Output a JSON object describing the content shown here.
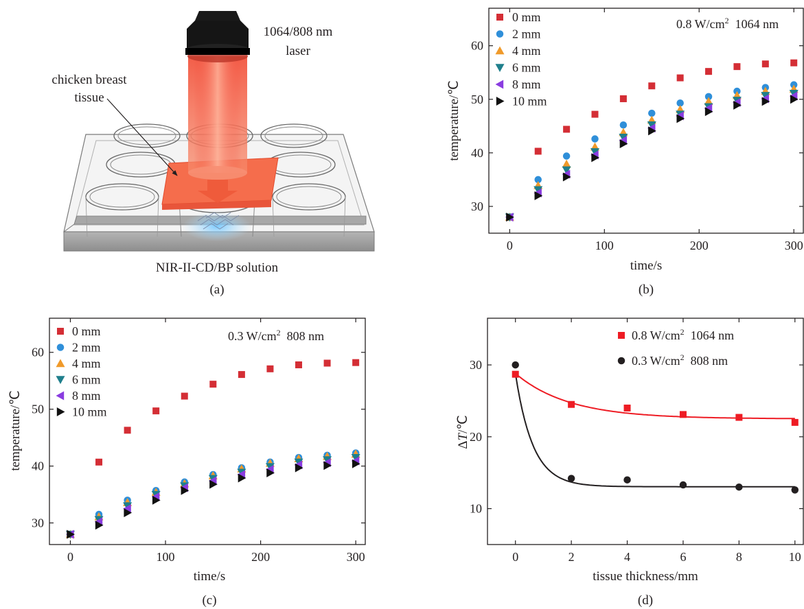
{
  "panel_a": {
    "laser_label_1": "1064/808 nm",
    "laser_label_2": "laser",
    "tissue_label_1": "chicken breast",
    "tissue_label_2": "tissue",
    "solution_label": "NIR-II-CD/BP solution",
    "caption": "(a)"
  },
  "chart_data": [
    {
      "id": "b",
      "type": "scatter",
      "caption": "(b)",
      "xlabel": "time/s",
      "ylabel": "temperature/℃",
      "annotation": {
        "power": "0.8 W/cm",
        "sup": "2",
        "wavelength": "1064 nm"
      },
      "xlim": [
        -22,
        310
      ],
      "ylim": [
        25,
        67
      ],
      "xticks": [
        0,
        100,
        200,
        300
      ],
      "yticks": [
        30,
        40,
        50,
        60
      ],
      "legend_position": "top-left",
      "grid": false,
      "x": [
        0,
        30,
        60,
        90,
        120,
        150,
        180,
        210,
        240,
        270,
        300
      ],
      "series": [
        {
          "name": "0 mm",
          "marker": "square",
          "color": "#d42e35",
          "values": [
            28,
            40.3,
            44.4,
            47.2,
            50.1,
            52.5,
            54,
            55.2,
            56.1,
            56.6,
            56.8
          ]
        },
        {
          "name": "2 mm",
          "marker": "circle",
          "color": "#2f8fd9",
          "values": [
            28,
            35,
            39.4,
            42.6,
            45.2,
            47.4,
            49.3,
            50.5,
            51.5,
            52.2,
            52.7
          ]
        },
        {
          "name": "4 mm",
          "marker": "triangle-up",
          "color": "#f09a2a",
          "values": [
            28,
            33.9,
            37.9,
            41.1,
            43.8,
            46.1,
            48.1,
            49.6,
            50.7,
            51.5,
            51.9
          ]
        },
        {
          "name": "6 mm",
          "marker": "triangle-down",
          "color": "#1f7f8c",
          "values": [
            28,
            33.1,
            36.8,
            40.2,
            42.9,
            45.2,
            47.2,
            48.6,
            49.8,
            50.7,
            51.1
          ]
        },
        {
          "name": "8 mm",
          "marker": "triangle-left",
          "color": "#8a3ce0",
          "values": [
            28,
            32.5,
            36,
            39.6,
            42.3,
            44.6,
            46.9,
            48.3,
            49.4,
            50.1,
            50.6
          ]
        },
        {
          "name": "10 mm",
          "marker": "triangle-right",
          "color": "#111111",
          "values": [
            28,
            32,
            35.5,
            39.1,
            41.7,
            44.1,
            46.4,
            47.7,
            48.9,
            49.6,
            50
          ]
        }
      ]
    },
    {
      "id": "c",
      "type": "scatter",
      "caption": "(c)",
      "xlabel": "time/s",
      "ylabel": "temperature/℃",
      "annotation": {
        "power": "0.3 W/cm",
        "sup": "2",
        "wavelength": "808 nm"
      },
      "xlim": [
        -22,
        310
      ],
      "ylim": [
        26.2,
        66
      ],
      "xticks": [
        0,
        100,
        200,
        300
      ],
      "yticks": [
        30,
        40,
        50,
        60
      ],
      "legend_position": "top-left",
      "grid": false,
      "x": [
        0,
        30,
        60,
        90,
        120,
        150,
        180,
        210,
        240,
        270,
        300
      ],
      "series": [
        {
          "name": "0 mm",
          "marker": "square",
          "color": "#d42e35",
          "values": [
            28,
            40.7,
            46.3,
            49.7,
            52.3,
            54.4,
            56.1,
            57.1,
            57.8,
            58.1,
            58.2
          ]
        },
        {
          "name": "2 mm",
          "marker": "circle",
          "color": "#2f8fd9",
          "values": [
            28,
            31.5,
            34,
            35.7,
            37.2,
            38.5,
            39.7,
            40.7,
            41.5,
            41.9,
            42.3
          ]
        },
        {
          "name": "4 mm",
          "marker": "triangle-up",
          "color": "#f09a2a",
          "values": [
            28,
            31.1,
            33.6,
            35.4,
            36.9,
            38.3,
            39.5,
            40.5,
            41.3,
            41.7,
            42.1
          ]
        },
        {
          "name": "6 mm",
          "marker": "triangle-down",
          "color": "#1f7f8c",
          "values": [
            28,
            30.6,
            33,
            35,
            36.5,
            37.8,
            38.9,
            39.9,
            40.7,
            41.1,
            41.5
          ]
        },
        {
          "name": "8 mm",
          "marker": "triangle-left",
          "color": "#8a3ce0",
          "values": [
            28,
            30.2,
            32.5,
            34.6,
            36.2,
            37.4,
            38.5,
            39.4,
            40.2,
            40.6,
            40.9
          ]
        },
        {
          "name": "10 mm",
          "marker": "triangle-right",
          "color": "#111111",
          "values": [
            28,
            29.6,
            31.8,
            34,
            35.7,
            36.8,
            37.9,
            38.8,
            39.7,
            40.1,
            40.4
          ]
        }
      ]
    },
    {
      "id": "d",
      "type": "scatter",
      "caption": "(d)",
      "xlabel": "tissue thickness/mm",
      "ylabel_pre": "Δ",
      "ylabel_italic": "T",
      "ylabel_post": "/℃",
      "xlim": [
        -1,
        10.3
      ],
      "ylim": [
        5,
        36.5
      ],
      "xticks": [
        0,
        2,
        4,
        6,
        8,
        10
      ],
      "yticks": [
        10,
        20,
        30
      ],
      "legend_position": "top-right",
      "grid": false,
      "x": [
        0,
        2,
        4,
        6,
        8,
        10
      ],
      "series": [
        {
          "name": "0.8 W/cm",
          "sup": "2",
          "suffix": "1064 nm",
          "marker": "square",
          "color": "#ee1c24",
          "values": [
            28.7,
            24.5,
            24,
            23.1,
            22.7,
            22
          ],
          "fit": {
            "a": 22.5,
            "b": 6.3,
            "k": 0.52
          }
        },
        {
          "name": "0.3 W/cm",
          "sup": "2",
          "suffix": "808 nm",
          "marker": "circle",
          "color": "#231f20",
          "values": [
            30,
            14.2,
            14,
            13.3,
            13,
            12.6
          ],
          "fit": {
            "a": 13.05,
            "b": 15.75,
            "k": 1.6
          }
        }
      ]
    }
  ]
}
